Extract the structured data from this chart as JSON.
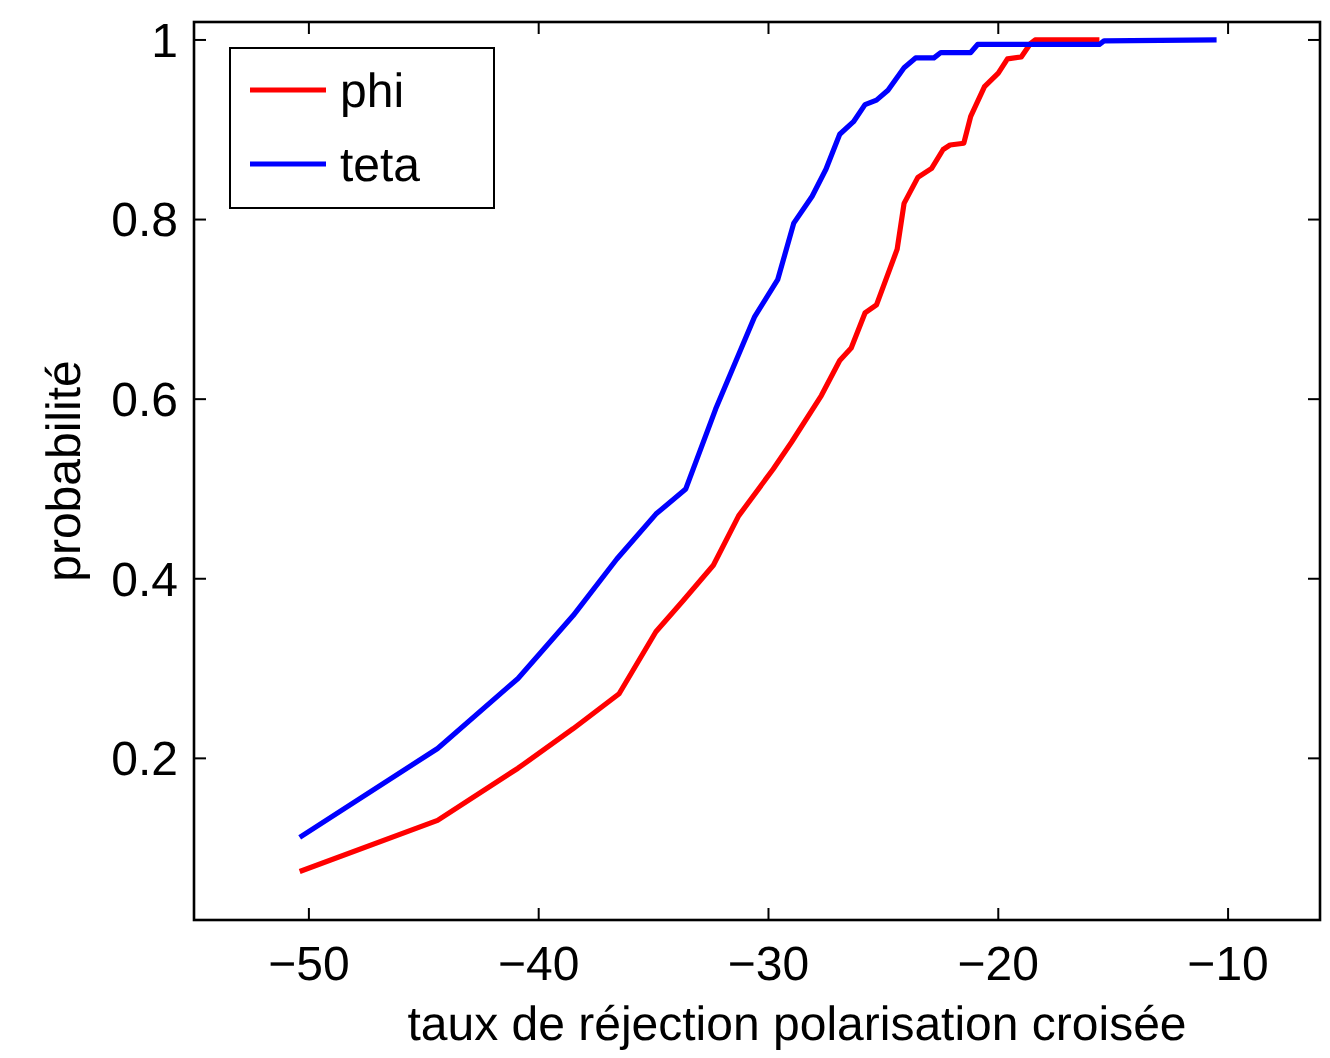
{
  "chart_data": {
    "type": "line",
    "xlabel": "taux de réjection polarisation croisée",
    "ylabel": "probabilité",
    "xlim": [
      -55,
      -6
    ],
    "xticks": [
      {
        "value": -50,
        "label": "−50"
      },
      {
        "value": -40,
        "label": "−40"
      },
      {
        "value": -30,
        "label": "−30"
      },
      {
        "value": -20,
        "label": "−20"
      },
      {
        "value": -10,
        "label": "−10"
      }
    ],
    "ylim": [
      0.02,
      1.02
    ],
    "yticks": [
      0.2,
      0.4,
      0.6,
      0.8,
      1
    ],
    "legend": "top left",
    "grid": false,
    "marker": "none",
    "line_style": "solid",
    "series": [
      {
        "name": "phi",
        "color": "#ff0000",
        "x": [
          -50.4,
          -44.4,
          -40.9,
          -38.5,
          -36.5,
          -34.9,
          -33.7,
          -32.4,
          -31.3,
          -29.8,
          -29.0,
          -27.7,
          -26.9,
          -26.4,
          -25.8,
          -25.3,
          -24.4,
          -24.1,
          -23.5,
          -22.9,
          -22.4,
          -22.1,
          -21.5,
          -21.2,
          -20.6,
          -20.0,
          -19.6,
          -19.0,
          -18.6,
          -18.4,
          -15.6
        ],
        "values": [
          0.074,
          0.131,
          0.189,
          0.233,
          0.272,
          0.341,
          0.376,
          0.415,
          0.47,
          0.522,
          0.552,
          0.604,
          0.643,
          0.657,
          0.696,
          0.705,
          0.767,
          0.818,
          0.847,
          0.857,
          0.878,
          0.883,
          0.885,
          0.915,
          0.948,
          0.963,
          0.979,
          0.981,
          0.996,
          1.0,
          1.0
        ]
      },
      {
        "name": "teta",
        "color": "#0000ff",
        "x": [
          -50.4,
          -44.4,
          -40.9,
          -38.5,
          -36.6,
          -34.9,
          -33.6,
          -32.3,
          -30.6,
          -29.6,
          -28.9,
          -28.1,
          -27.5,
          -26.9,
          -26.3,
          -25.8,
          -25.3,
          -24.8,
          -24.1,
          -23.6,
          -22.8,
          -22.5,
          -21.2,
          -20.9,
          -15.6,
          -15.4,
          -10.5
        ],
        "values": [
          0.112,
          0.211,
          0.289,
          0.359,
          0.422,
          0.472,
          0.5,
          0.589,
          0.692,
          0.733,
          0.796,
          0.826,
          0.856,
          0.895,
          0.909,
          0.928,
          0.933,
          0.944,
          0.969,
          0.98,
          0.98,
          0.986,
          0.986,
          0.995,
          0.995,
          0.999,
          1.0
        ]
      }
    ]
  }
}
